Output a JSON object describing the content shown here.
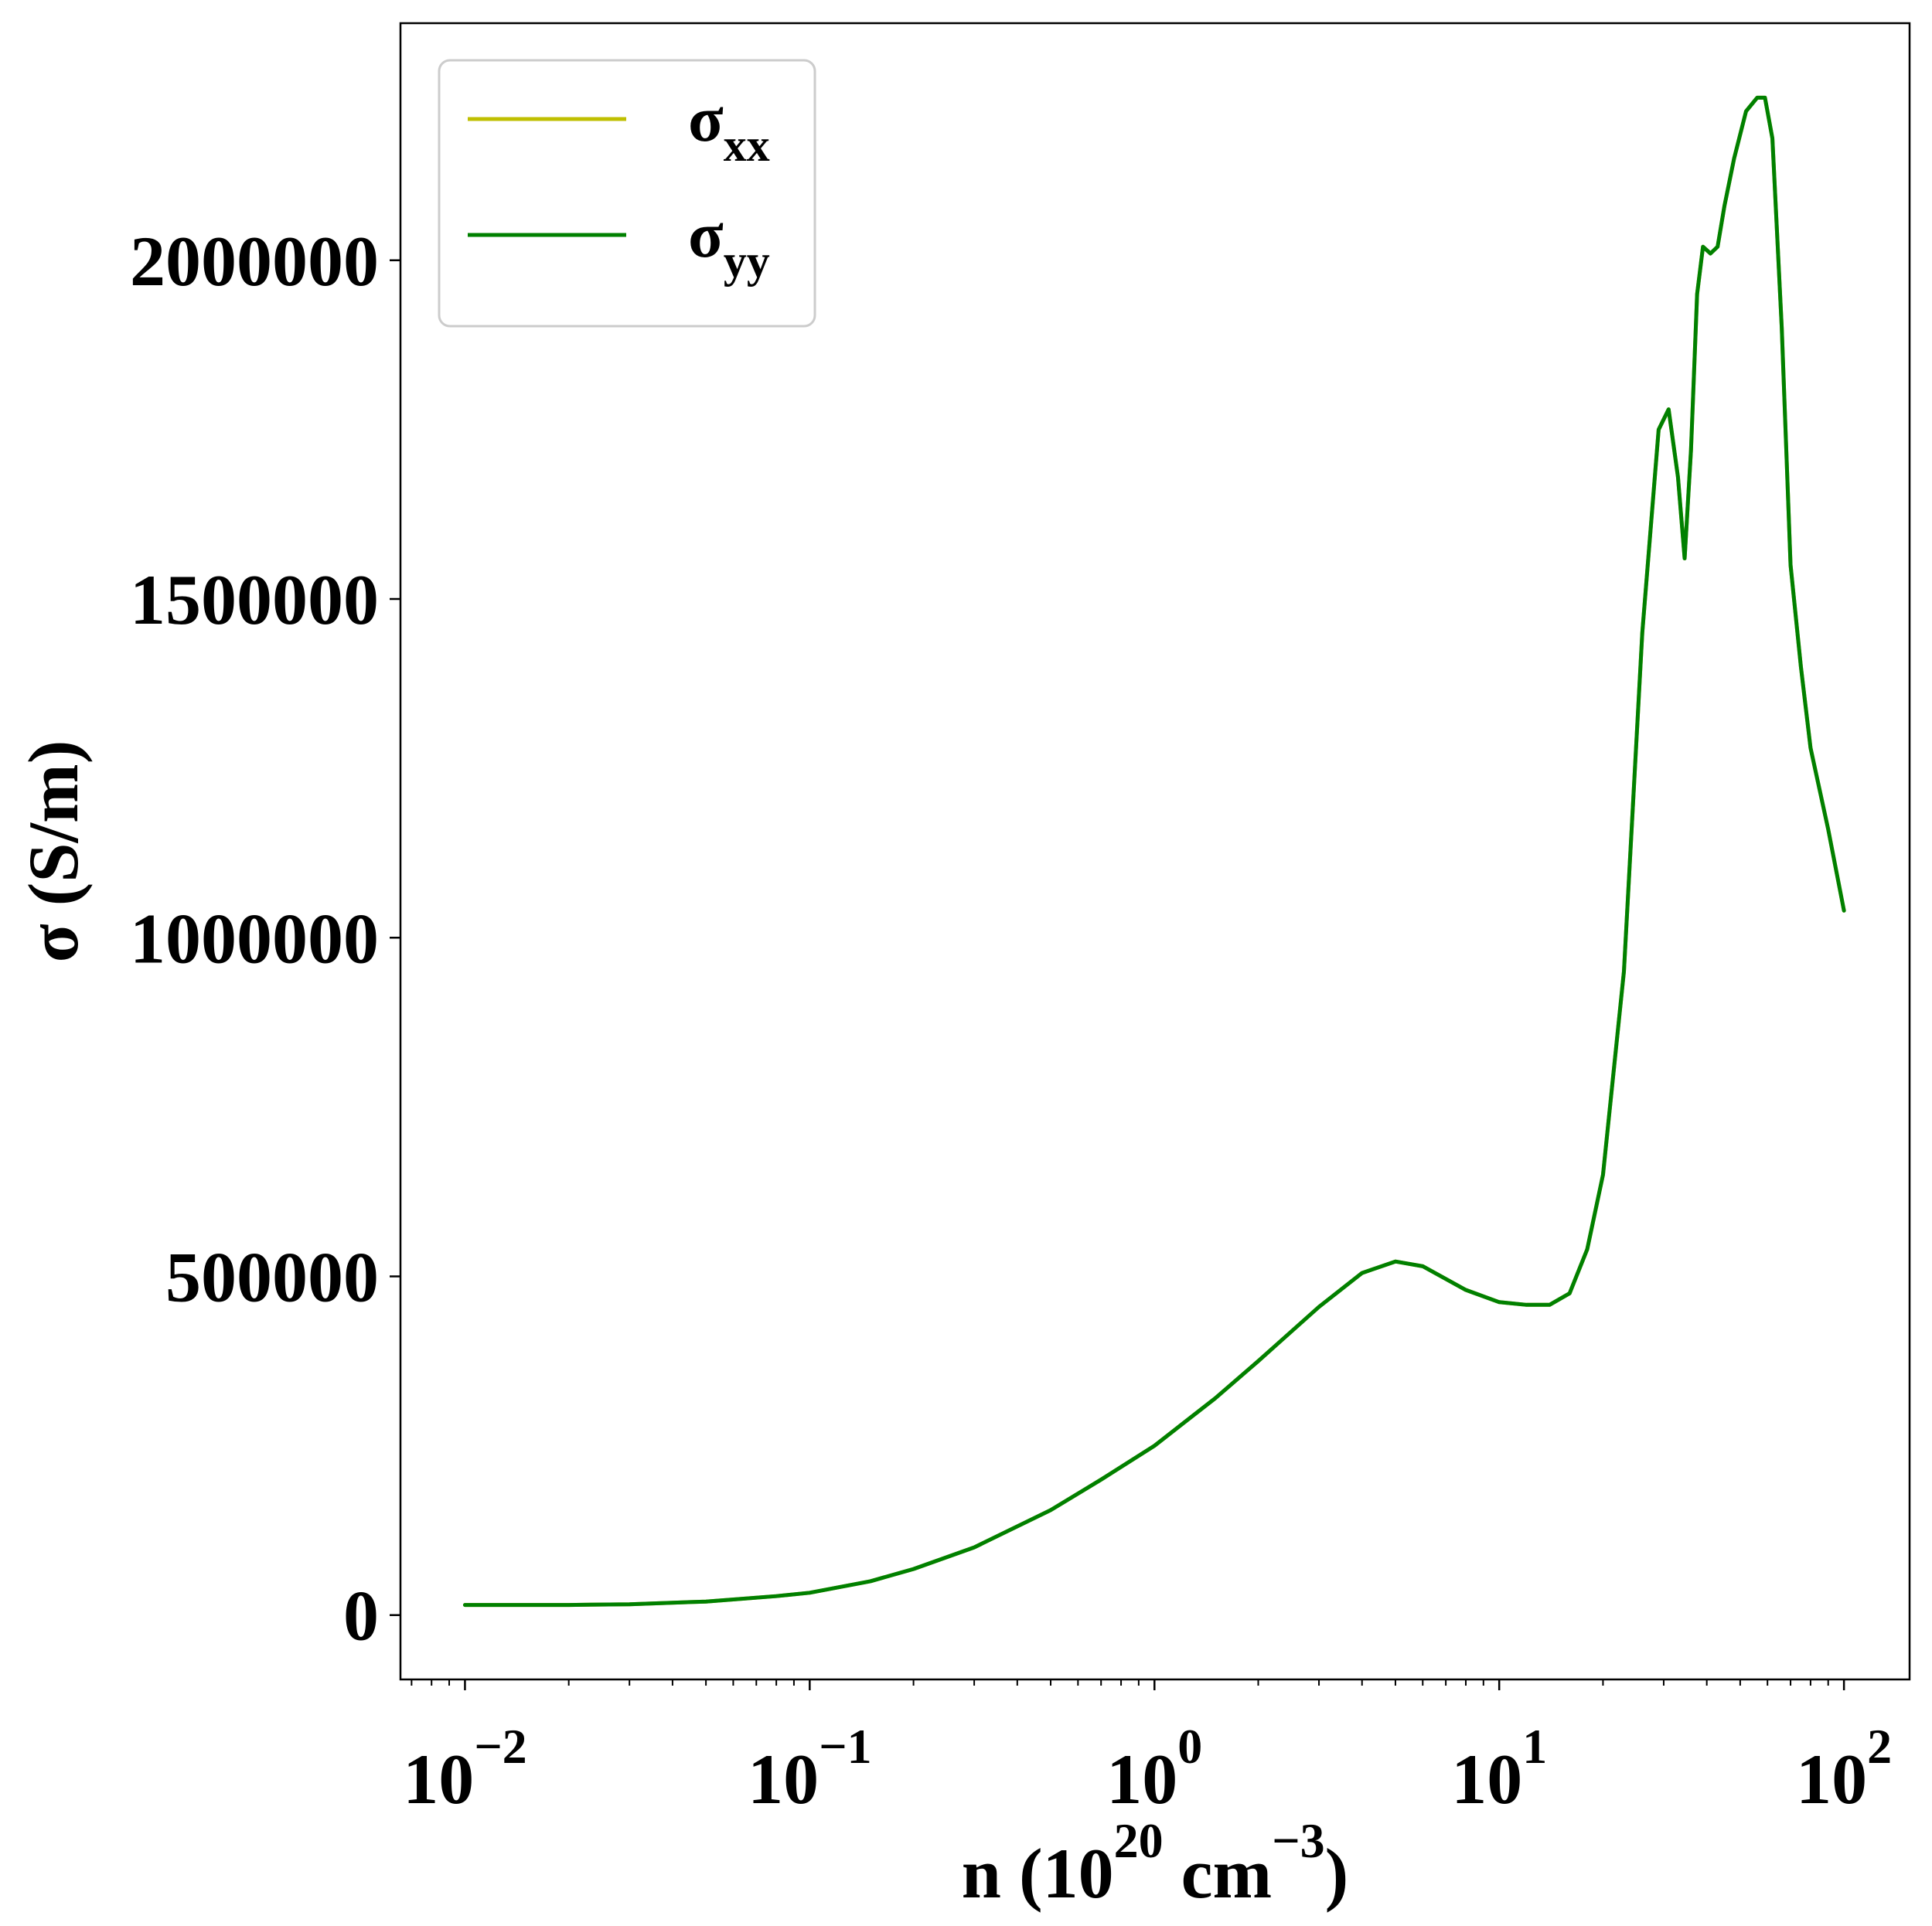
{
  "chart_data": {
    "type": "line",
    "xscale": "log",
    "xlim": [
      0.0065,
      155
    ],
    "ylim": [
      -95000,
      2350000
    ],
    "grid": false,
    "legend_placement": "top-left",
    "xlabel": {
      "main": "n (10",
      "sup1": "20",
      "mid": " cm",
      "sup2": "−3",
      "end": ")"
    },
    "ylabel": "σ (S/m)",
    "y_ticks": [
      {
        "value": 0,
        "label": "0"
      },
      {
        "value": 500000,
        "label": "500000"
      },
      {
        "value": 1000000,
        "label": "1000000"
      },
      {
        "value": 1500000,
        "label": "1500000"
      },
      {
        "value": 2000000,
        "label": "2000000"
      }
    ],
    "x_ticks": [
      {
        "value": 0.01,
        "base": "10",
        "exp": "−2"
      },
      {
        "value": 0.1,
        "base": "10",
        "exp": "−1"
      },
      {
        "value": 1,
        "base": "10",
        "exp": "0"
      },
      {
        "value": 10,
        "base": "10",
        "exp": "1"
      },
      {
        "value": 100,
        "base": "10",
        "exp": "2"
      }
    ],
    "series": [
      {
        "name": {
          "base": "σ",
          "sub": "xx"
        },
        "color": "#bfbf00",
        "x": [
          0.01,
          0.02,
          0.03,
          0.05,
          0.08,
          0.1,
          0.15,
          0.2,
          0.3,
          0.5,
          0.7,
          1.0,
          1.5,
          2.0,
          3.0,
          4.0,
          5.0,
          6.0,
          8.0,
          10.0,
          12.0,
          14.0,
          16.0,
          18.0,
          20.0,
          23.0,
          26.0,
          29.0,
          31.0,
          33.0,
          34.5,
          36.0,
          37.5,
          39.0,
          41.0,
          43.0,
          45.0,
          48.0,
          52.0,
          56.0,
          59.0,
          62.0,
          66.0,
          70.0,
          75.0,
          80.0,
          90.0,
          100.0
        ],
        "values": [
          15000,
          15000,
          16000,
          20000,
          28000,
          33000,
          50000,
          68000,
          100000,
          155000,
          200000,
          250000,
          320000,
          375000,
          455000,
          505000,
          522000,
          515000,
          480000,
          462000,
          458000,
          458000,
          475000,
          540000,
          650000,
          950000,
          1450000,
          1750000,
          1780000,
          1680000,
          1560000,
          1720000,
          1950000,
          2020000,
          2010000,
          2020000,
          2080000,
          2150000,
          2220000,
          2240000,
          2240000,
          2180000,
          1900000,
          1550000,
          1400000,
          1280000,
          1160000,
          1040000
        ]
      },
      {
        "name": {
          "base": "σ",
          "sub": "yy"
        },
        "color": "#008000",
        "x": [
          0.01,
          0.02,
          0.03,
          0.05,
          0.08,
          0.1,
          0.15,
          0.2,
          0.3,
          0.5,
          0.7,
          1.0,
          1.5,
          2.0,
          3.0,
          4.0,
          5.0,
          6.0,
          8.0,
          10.0,
          12.0,
          14.0,
          16.0,
          18.0,
          20.0,
          23.0,
          26.0,
          29.0,
          31.0,
          33.0,
          34.5,
          36.0,
          37.5,
          39.0,
          41.0,
          43.0,
          45.0,
          48.0,
          52.0,
          56.0,
          59.0,
          62.0,
          66.0,
          70.0,
          75.0,
          80.0,
          90.0,
          100.0
        ],
        "values": [
          15000,
          15000,
          16000,
          20000,
          28000,
          33000,
          50000,
          68000,
          100000,
          155000,
          200000,
          250000,
          320000,
          375000,
          455000,
          505000,
          522000,
          515000,
          480000,
          462000,
          458000,
          458000,
          475000,
          540000,
          650000,
          950000,
          1450000,
          1750000,
          1780000,
          1680000,
          1560000,
          1720000,
          1950000,
          2020000,
          2010000,
          2020000,
          2080000,
          2150000,
          2220000,
          2240000,
          2240000,
          2180000,
          1900000,
          1550000,
          1400000,
          1280000,
          1160000,
          1040000
        ]
      }
    ]
  }
}
